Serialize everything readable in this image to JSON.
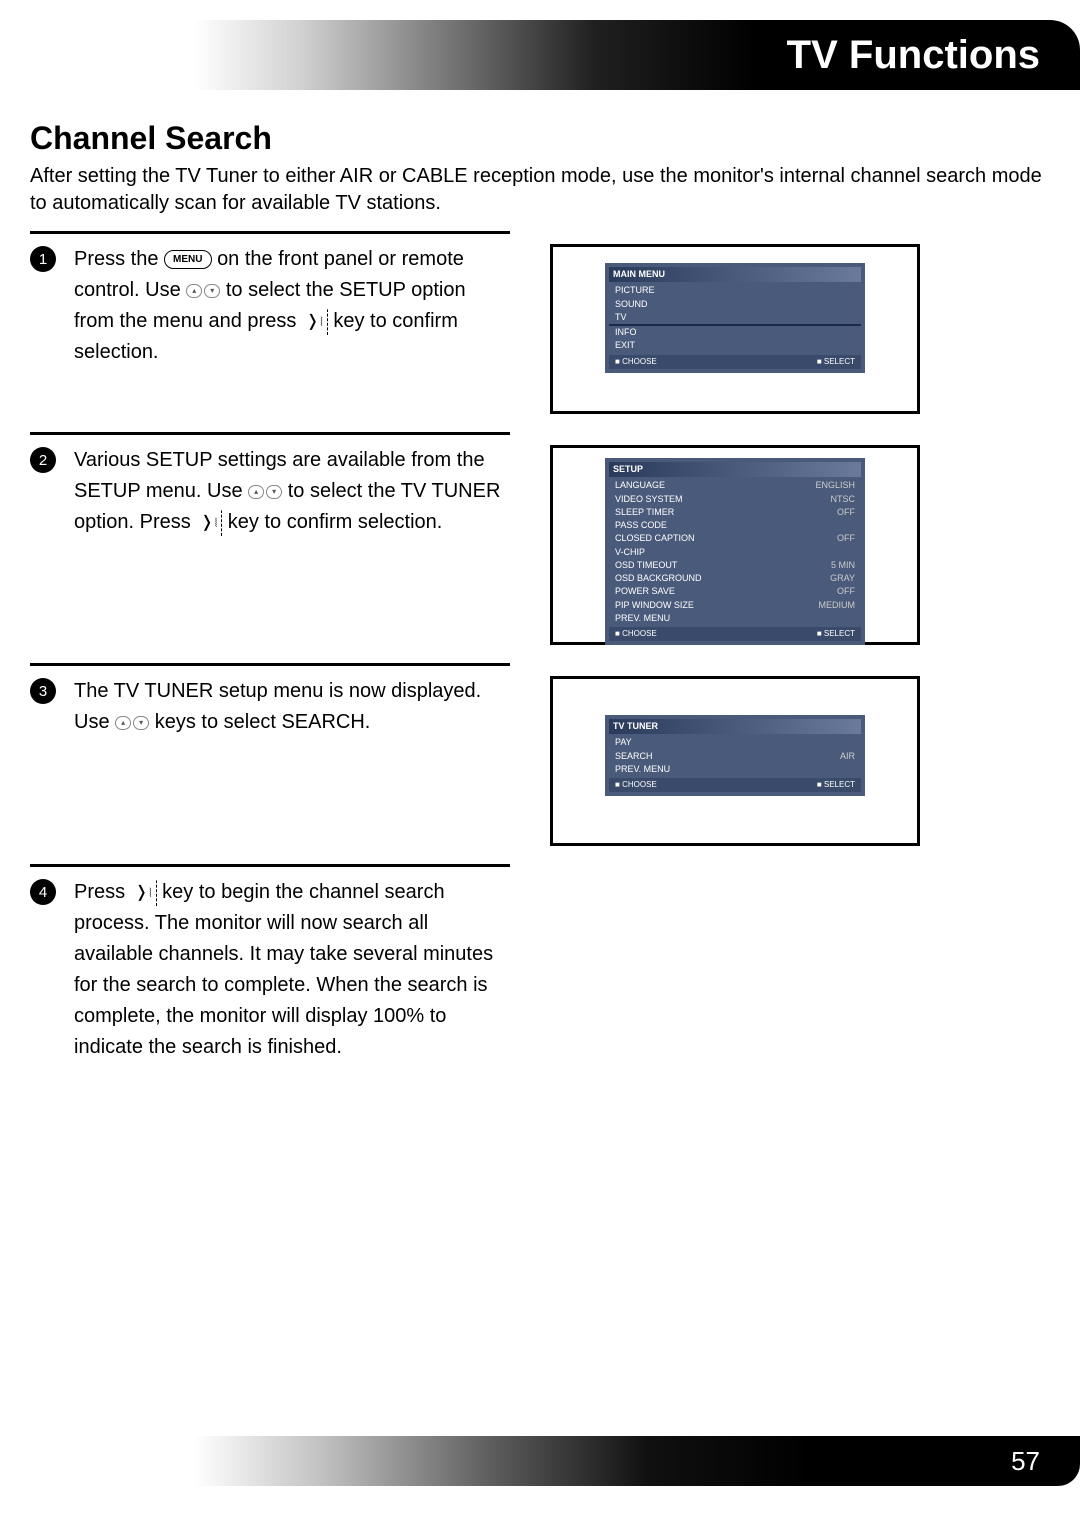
{
  "banner_title": "TV Functions",
  "section_title": "Channel Search",
  "intro": "After setting the TV Tuner to either AIR or CABLE reception mode, use the monitor's internal channel search mode to automatically scan for available TV stations.",
  "steps": [
    {
      "num": "1",
      "text_parts": [
        "Press the ",
        " on the front panel or remote control.  Use ",
        " to select the SETUP option from the menu and press ",
        " key to confirm selection."
      ]
    },
    {
      "num": "2",
      "text_parts": [
        "Various SETUP settings are available from the SETUP menu.  Use ",
        " to select the TV TUNER option.  Press ",
        " key to confirm selection."
      ]
    },
    {
      "num": "3",
      "text_parts": [
        "The TV TUNER setup menu is now displayed. Use ",
        " keys to select SEARCH."
      ]
    },
    {
      "num": "4",
      "text_parts": [
        "Press ",
        " key to begin the channel search process.  The monitor will now search all available channels.  It may take several minutes for the search to complete.  When the search is complete, the monitor will display 100% to indicate the search is finished."
      ]
    }
  ],
  "btn_menu": "MENU",
  "btn_up": "▴",
  "btn_down": "▾",
  "osd1": {
    "header": "MAIN MENU",
    "items": [
      "PICTURE",
      "SOUND",
      "TV",
      "",
      "INFO",
      "EXIT"
    ],
    "footer_left": "CHOOSE",
    "footer_right": "SELECT"
  },
  "osd2": {
    "header": "SETUP",
    "items": [
      {
        "l": "LANGUAGE",
        "r": "ENGLISH"
      },
      {
        "l": "VIDEO SYSTEM",
        "r": "NTSC"
      },
      {
        "l": "SLEEP TIMER",
        "r": "OFF"
      },
      {
        "l": "PASS CODE",
        "r": ""
      },
      {
        "l": "CLOSED CAPTION",
        "r": "OFF"
      },
      {
        "l": "V-CHIP",
        "r": ""
      },
      {
        "l": "OSD TIMEOUT",
        "r": "5 MIN"
      },
      {
        "l": "OSD BACKGROUND",
        "r": "GRAY"
      },
      {
        "l": "POWER SAVE",
        "r": "OFF"
      },
      {
        "l": "PIP WINDOW SIZE",
        "r": "MEDIUM"
      },
      {
        "l": "PREV. MENU",
        "r": ""
      }
    ],
    "footer_left": "CHOOSE",
    "footer_right": "SELECT"
  },
  "osd3": {
    "header": "TV TUNER",
    "items": [
      {
        "l": "PAY",
        "r": ""
      },
      {
        "l": "SEARCH",
        "r": "AIR"
      },
      {
        "l": "PREV. MENU",
        "r": ""
      }
    ],
    "footer_left": "CHOOSE",
    "footer_right": "SELECT"
  },
  "page_number": "57"
}
